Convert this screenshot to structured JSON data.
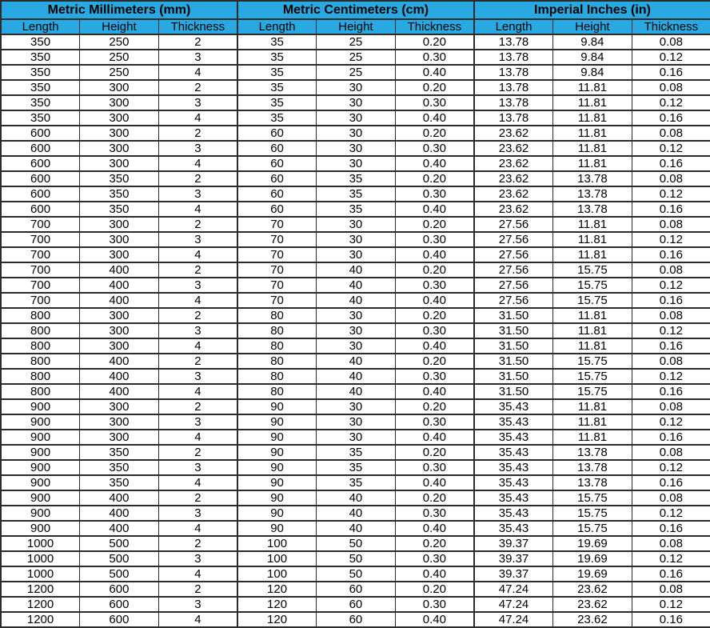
{
  "chart_data": {
    "type": "table",
    "groups": [
      {
        "label": "Metric Millimeters (mm)",
        "columns": [
          "Length",
          "Height",
          "Thickness"
        ]
      },
      {
        "label": "Metric Centimeters (cm)",
        "columns": [
          "Length",
          "Height",
          "Thickness"
        ]
      },
      {
        "label": "Imperial Inches (in)",
        "columns": [
          "Length",
          "Height",
          "Thickness"
        ]
      }
    ],
    "rows": [
      [
        "350",
        "250",
        "2",
        "35",
        "25",
        "0.20",
        "13.78",
        "9.84",
        "0.08"
      ],
      [
        "350",
        "250",
        "3",
        "35",
        "25",
        "0.30",
        "13.78",
        "9.84",
        "0.12"
      ],
      [
        "350",
        "250",
        "4",
        "35",
        "25",
        "0.40",
        "13.78",
        "9.84",
        "0.16"
      ],
      [
        "350",
        "300",
        "2",
        "35",
        "30",
        "0.20",
        "13.78",
        "11.81",
        "0.08"
      ],
      [
        "350",
        "300",
        "3",
        "35",
        "30",
        "0.30",
        "13.78",
        "11.81",
        "0.12"
      ],
      [
        "350",
        "300",
        "4",
        "35",
        "30",
        "0.40",
        "13.78",
        "11.81",
        "0.16"
      ],
      [
        "600",
        "300",
        "2",
        "60",
        "30",
        "0.20",
        "23.62",
        "11.81",
        "0.08"
      ],
      [
        "600",
        "300",
        "3",
        "60",
        "30",
        "0.30",
        "23.62",
        "11.81",
        "0.12"
      ],
      [
        "600",
        "300",
        "4",
        "60",
        "30",
        "0.40",
        "23.62",
        "11.81",
        "0.16"
      ],
      [
        "600",
        "350",
        "2",
        "60",
        "35",
        "0.20",
        "23.62",
        "13.78",
        "0.08"
      ],
      [
        "600",
        "350",
        "3",
        "60",
        "35",
        "0.30",
        "23.62",
        "13.78",
        "0.12"
      ],
      [
        "600",
        "350",
        "4",
        "60",
        "35",
        "0.40",
        "23.62",
        "13.78",
        "0.16"
      ],
      [
        "700",
        "300",
        "2",
        "70",
        "30",
        "0.20",
        "27.56",
        "11.81",
        "0.08"
      ],
      [
        "700",
        "300",
        "3",
        "70",
        "30",
        "0.30",
        "27.56",
        "11.81",
        "0.12"
      ],
      [
        "700",
        "300",
        "4",
        "70",
        "30",
        "0.40",
        "27.56",
        "11.81",
        "0.16"
      ],
      [
        "700",
        "400",
        "2",
        "70",
        "40",
        "0.20",
        "27.56",
        "15.75",
        "0.08"
      ],
      [
        "700",
        "400",
        "3",
        "70",
        "40",
        "0.30",
        "27.56",
        "15.75",
        "0.12"
      ],
      [
        "700",
        "400",
        "4",
        "70",
        "40",
        "0.40",
        "27.56",
        "15.75",
        "0.16"
      ],
      [
        "800",
        "300",
        "2",
        "80",
        "30",
        "0.20",
        "31.50",
        "11.81",
        "0.08"
      ],
      [
        "800",
        "300",
        "3",
        "80",
        "30",
        "0.30",
        "31.50",
        "11.81",
        "0.12"
      ],
      [
        "800",
        "300",
        "4",
        "80",
        "30",
        "0.40",
        "31.50",
        "11.81",
        "0.16"
      ],
      [
        "800",
        "400",
        "2",
        "80",
        "40",
        "0.20",
        "31.50",
        "15.75",
        "0.08"
      ],
      [
        "800",
        "400",
        "3",
        "80",
        "40",
        "0.30",
        "31.50",
        "15.75",
        "0.12"
      ],
      [
        "800",
        "400",
        "4",
        "80",
        "40",
        "0.40",
        "31.50",
        "15.75",
        "0.16"
      ],
      [
        "900",
        "300",
        "2",
        "90",
        "30",
        "0.20",
        "35.43",
        "11.81",
        "0.08"
      ],
      [
        "900",
        "300",
        "3",
        "90",
        "30",
        "0.30",
        "35.43",
        "11.81",
        "0.12"
      ],
      [
        "900",
        "300",
        "4",
        "90",
        "30",
        "0.40",
        "35.43",
        "11.81",
        "0.16"
      ],
      [
        "900",
        "350",
        "2",
        "90",
        "35",
        "0.20",
        "35.43",
        "13.78",
        "0.08"
      ],
      [
        "900",
        "350",
        "3",
        "90",
        "35",
        "0.30",
        "35.43",
        "13.78",
        "0.12"
      ],
      [
        "900",
        "350",
        "4",
        "90",
        "35",
        "0.40",
        "35.43",
        "13.78",
        "0.16"
      ],
      [
        "900",
        "400",
        "2",
        "90",
        "40",
        "0.20",
        "35.43",
        "15.75",
        "0.08"
      ],
      [
        "900",
        "400",
        "3",
        "90",
        "40",
        "0.30",
        "35.43",
        "15.75",
        "0.12"
      ],
      [
        "900",
        "400",
        "4",
        "90",
        "40",
        "0.40",
        "35.43",
        "15.75",
        "0.16"
      ],
      [
        "1000",
        "500",
        "2",
        "100",
        "50",
        "0.20",
        "39.37",
        "19.69",
        "0.08"
      ],
      [
        "1000",
        "500",
        "3",
        "100",
        "50",
        "0.30",
        "39.37",
        "19.69",
        "0.12"
      ],
      [
        "1000",
        "500",
        "4",
        "100",
        "50",
        "0.40",
        "39.37",
        "19.69",
        "0.16"
      ],
      [
        "1200",
        "600",
        "2",
        "120",
        "60",
        "0.20",
        "47.24",
        "23.62",
        "0.08"
      ],
      [
        "1200",
        "600",
        "3",
        "120",
        "60",
        "0.30",
        "47.24",
        "23.62",
        "0.12"
      ],
      [
        "1200",
        "600",
        "4",
        "120",
        "60",
        "0.40",
        "47.24",
        "23.62",
        "0.16"
      ]
    ]
  },
  "colors": {
    "header_bg": "#29A9E1",
    "border": "#2b2b2b",
    "text": "#000000",
    "cell_bg": "#ffffff"
  }
}
